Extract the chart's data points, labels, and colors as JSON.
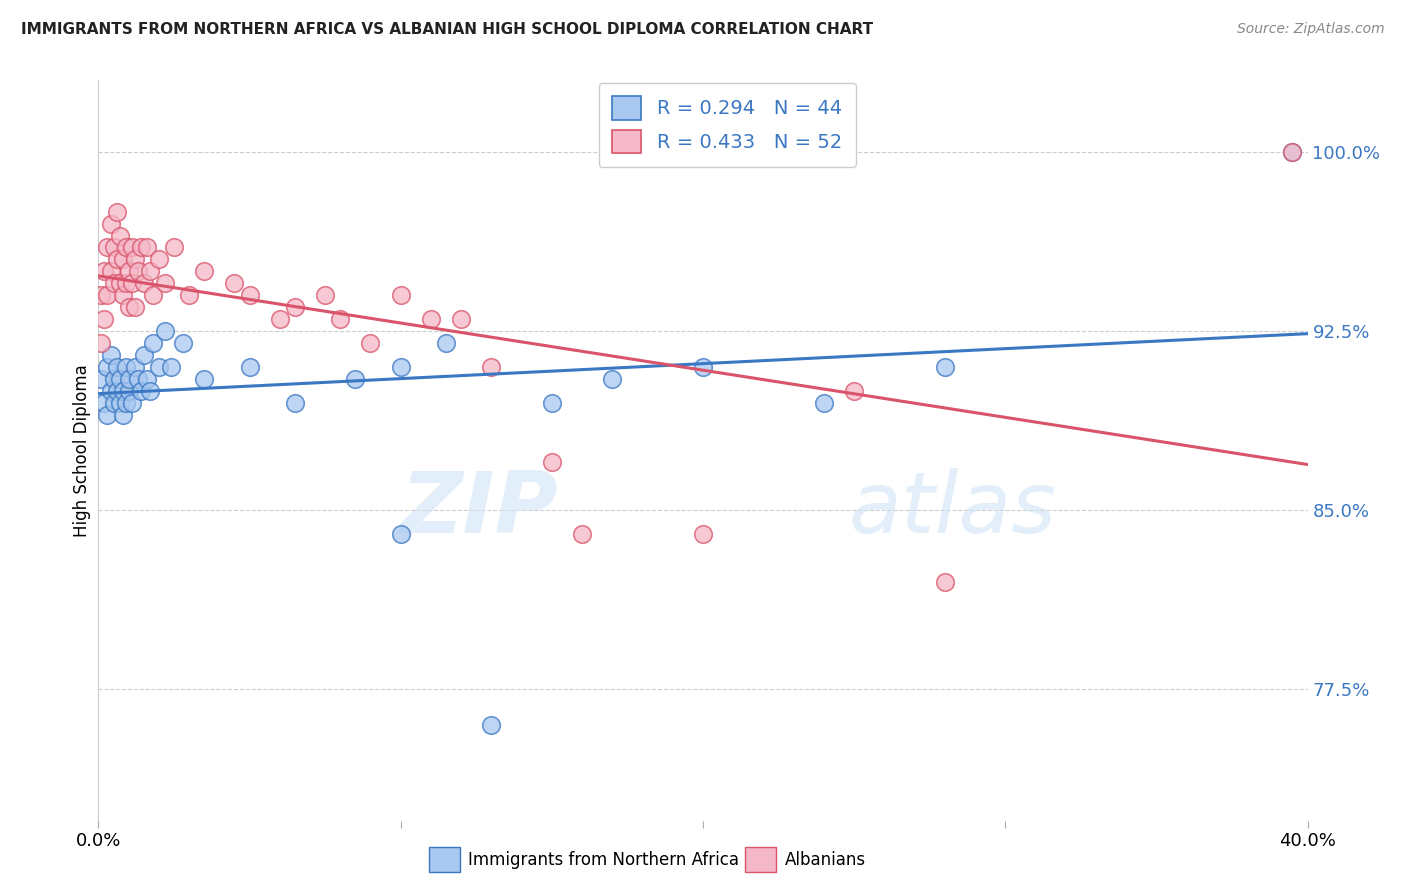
{
  "title": "IMMIGRANTS FROM NORTHERN AFRICA VS ALBANIAN HIGH SCHOOL DIPLOMA CORRELATION CHART",
  "source": "Source: ZipAtlas.com",
  "ylabel": "High School Diploma",
  "yticks": [
    "100.0%",
    "92.5%",
    "85.0%",
    "77.5%"
  ],
  "ytick_vals": [
    1.0,
    0.925,
    0.85,
    0.775
  ],
  "xlim": [
    0.0,
    0.4
  ],
  "ylim": [
    0.72,
    1.03
  ],
  "watermark_zip": "ZIP",
  "watermark_atlas": "atlas",
  "legend_label1": "Immigrants from Northern Africa",
  "legend_label2": "Albanians",
  "R1": 0.294,
  "N1": 44,
  "R2": 0.433,
  "N2": 52,
  "color1": "#A8C8F0",
  "color2": "#F5B8C8",
  "line_color1": "#3B78C3",
  "line_color2": "#D9546A",
  "title_color": "#222222",
  "source_color": "#888888",
  "scatter1_x": [
    0.001,
    0.002,
    0.003,
    0.003,
    0.004,
    0.004,
    0.005,
    0.005,
    0.006,
    0.006,
    0.007,
    0.007,
    0.008,
    0.008,
    0.009,
    0.009,
    0.01,
    0.01,
    0.011,
    0.012,
    0.013,
    0.014,
    0.015,
    0.016,
    0.017,
    0.018,
    0.02,
    0.022,
    0.024,
    0.028,
    0.035,
    0.05,
    0.065,
    0.085,
    0.1,
    0.115,
    0.15,
    0.17,
    0.2,
    0.24,
    0.28,
    0.1,
    0.13,
    0.395
  ],
  "scatter1_y": [
    0.905,
    0.895,
    0.91,
    0.89,
    0.9,
    0.915,
    0.905,
    0.895,
    0.91,
    0.9,
    0.895,
    0.905,
    0.9,
    0.89,
    0.91,
    0.895,
    0.9,
    0.905,
    0.895,
    0.91,
    0.905,
    0.9,
    0.915,
    0.905,
    0.9,
    0.92,
    0.91,
    0.925,
    0.91,
    0.92,
    0.905,
    0.91,
    0.895,
    0.905,
    0.91,
    0.92,
    0.895,
    0.905,
    0.91,
    0.895,
    0.91,
    0.84,
    0.76,
    1.0
  ],
  "scatter2_x": [
    0.001,
    0.001,
    0.002,
    0.002,
    0.003,
    0.003,
    0.004,
    0.004,
    0.005,
    0.005,
    0.006,
    0.006,
    0.007,
    0.007,
    0.008,
    0.008,
    0.009,
    0.009,
    0.01,
    0.01,
    0.011,
    0.011,
    0.012,
    0.012,
    0.013,
    0.014,
    0.015,
    0.016,
    0.017,
    0.018,
    0.02,
    0.022,
    0.025,
    0.03,
    0.035,
    0.045,
    0.06,
    0.075,
    0.09,
    0.11,
    0.13,
    0.15,
    0.2,
    0.25,
    0.28,
    0.05,
    0.065,
    0.08,
    0.1,
    0.12,
    0.16,
    0.395
  ],
  "scatter2_y": [
    0.94,
    0.92,
    0.95,
    0.93,
    0.96,
    0.94,
    0.97,
    0.95,
    0.96,
    0.945,
    0.975,
    0.955,
    0.965,
    0.945,
    0.955,
    0.94,
    0.96,
    0.945,
    0.95,
    0.935,
    0.96,
    0.945,
    0.955,
    0.935,
    0.95,
    0.96,
    0.945,
    0.96,
    0.95,
    0.94,
    0.955,
    0.945,
    0.96,
    0.94,
    0.95,
    0.945,
    0.93,
    0.94,
    0.92,
    0.93,
    0.91,
    0.87,
    0.84,
    0.9,
    0.82,
    0.94,
    0.935,
    0.93,
    0.94,
    0.93,
    0.84,
    1.0
  ]
}
